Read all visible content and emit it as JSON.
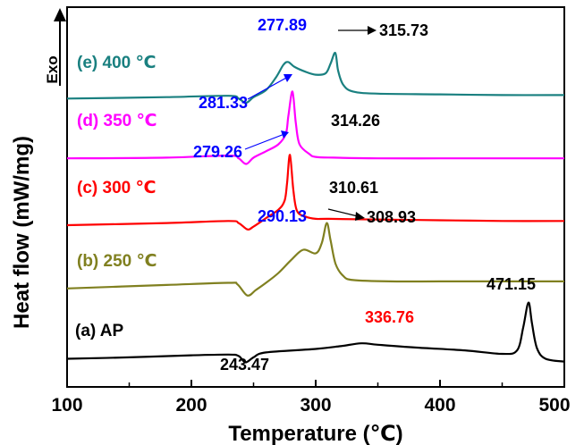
{
  "chart_data": {
    "type": "line",
    "title": "",
    "xlabel": "Temperature (℃)",
    "ylabel": "Heat flow (mW/mg)",
    "exo_label": "Exo",
    "xlim": [
      100,
      500
    ],
    "xticks": [
      100,
      200,
      300,
      400,
      500
    ],
    "y_ticks_shown": false,
    "grid": false,
    "legend": "none",
    "series": [
      {
        "name": "(a) AP",
        "color": "#000000",
        "offset": 0,
        "points": [
          [
            100,
            0
          ],
          [
            150,
            0.2
          ],
          [
            200,
            0.5
          ],
          [
            230,
            0.6
          ],
          [
            238,
            0.4
          ],
          [
            243.47,
            -0.5
          ],
          [
            250,
            0.2
          ],
          [
            260,
            0.9
          ],
          [
            300,
            1.4
          ],
          [
            320,
            1.8
          ],
          [
            336.76,
            2.2
          ],
          [
            350,
            2.0
          ],
          [
            380,
            1.6
          ],
          [
            420,
            1.2
          ],
          [
            450,
            0.7
          ],
          [
            462,
            1.2
          ],
          [
            467,
            4.5
          ],
          [
            471.15,
            8.0
          ],
          [
            474,
            5.0
          ],
          [
            478,
            1.5
          ],
          [
            485,
            0.0
          ],
          [
            500,
            -0.4
          ]
        ]
      },
      {
        "name": "(b) 250 ℃",
        "color": "#808020",
        "offset": 10,
        "points": [
          [
            100,
            0
          ],
          [
            180,
            0.5
          ],
          [
            230,
            0.8
          ],
          [
            237,
            0.6
          ],
          [
            245,
            -1.0
          ],
          [
            252,
            -0.2
          ],
          [
            260,
            0.8
          ],
          [
            270,
            2.2
          ],
          [
            280,
            4.0
          ],
          [
            290,
            5.5
          ],
          [
            300,
            5.0
          ],
          [
            305,
            6.5
          ],
          [
            308.93,
            9.3
          ],
          [
            312,
            6.8
          ],
          [
            316,
            3.5
          ],
          [
            322,
            1.8
          ],
          [
            330,
            1.2
          ],
          [
            360,
            1.0
          ],
          [
            400,
            1.0
          ],
          [
            450,
            1.0
          ],
          [
            500,
            1.0
          ]
        ]
      },
      {
        "name": "(c) 300 ℃",
        "color": "#ff0000",
        "offset": 19,
        "points": [
          [
            100,
            0
          ],
          [
            180,
            0.3
          ],
          [
            230,
            0.6
          ],
          [
            238,
            0.3
          ],
          [
            245,
            -0.6
          ],
          [
            250,
            -0.2
          ],
          [
            260,
            1.0
          ],
          [
            270,
            2.2
          ],
          [
            275,
            3.5
          ],
          [
            277,
            6.0
          ],
          [
            279.26,
            10.0
          ],
          [
            282,
            5.0
          ],
          [
            285,
            2.0
          ],
          [
            292,
            1.2
          ],
          [
            300,
            0.9
          ],
          [
            310.61,
            0.9
          ],
          [
            350,
            0.8
          ],
          [
            400,
            0.7
          ],
          [
            450,
            0.6
          ],
          [
            500,
            0.6
          ]
        ]
      },
      {
        "name": "(d) 350 ℃",
        "color": "#ff00ff",
        "offset": 28.5,
        "points": [
          [
            100,
            0
          ],
          [
            180,
            0.1
          ],
          [
            230,
            0.4
          ],
          [
            238,
            0.0
          ],
          [
            244,
            -0.8
          ],
          [
            250,
            0.1
          ],
          [
            260,
            1.0
          ],
          [
            270,
            2.0
          ],
          [
            276,
            3.5
          ],
          [
            278,
            6.0
          ],
          [
            281.33,
            9.5
          ],
          [
            284,
            5.0
          ],
          [
            287,
            2.0
          ],
          [
            295,
            0.6
          ],
          [
            300,
            0.2
          ],
          [
            314.26,
            0.1
          ],
          [
            350,
            0.0
          ],
          [
            400,
            0.0
          ],
          [
            450,
            0.0
          ],
          [
            500,
            0.0
          ]
        ]
      },
      {
        "name": "(e) 400 ℃",
        "color": "#1a8080",
        "offset": 37,
        "points": [
          [
            100,
            0
          ],
          [
            180,
            0.2
          ],
          [
            230,
            0.4
          ],
          [
            238,
            0.0
          ],
          [
            244,
            -0.6
          ],
          [
            250,
            0.2
          ],
          [
            260,
            1.2
          ],
          [
            268,
            3.0
          ],
          [
            274,
            4.8
          ],
          [
            277.89,
            5.2
          ],
          [
            283,
            4.5
          ],
          [
            292,
            3.8
          ],
          [
            300,
            3.4
          ],
          [
            308,
            3.6
          ],
          [
            312,
            5.0
          ],
          [
            315.73,
            6.5
          ],
          [
            318,
            4.0
          ],
          [
            322,
            2.0
          ],
          [
            330,
            1.0
          ],
          [
            350,
            0.7
          ],
          [
            400,
            0.6
          ],
          [
            450,
            0.5
          ],
          [
            500,
            0.5
          ]
        ]
      }
    ],
    "annotations": [
      {
        "text": "243.47",
        "color": "#000000"
      },
      {
        "text": "336.76",
        "color": "#ff0000"
      },
      {
        "text": "471.15",
        "color": "#000000"
      },
      {
        "text": "290.13",
        "color": "#0000ff"
      },
      {
        "text": "308.93",
        "color": "#000000"
      },
      {
        "text": "310.61",
        "color": "#000000"
      },
      {
        "text": "279.26",
        "color": "#0000ff"
      },
      {
        "text": "314.26",
        "color": "#000000"
      },
      {
        "text": "281.33",
        "color": "#0000ff"
      },
      {
        "text": "277.89",
        "color": "#0000ff"
      },
      {
        "text": "315.73",
        "color": "#000000"
      }
    ]
  }
}
